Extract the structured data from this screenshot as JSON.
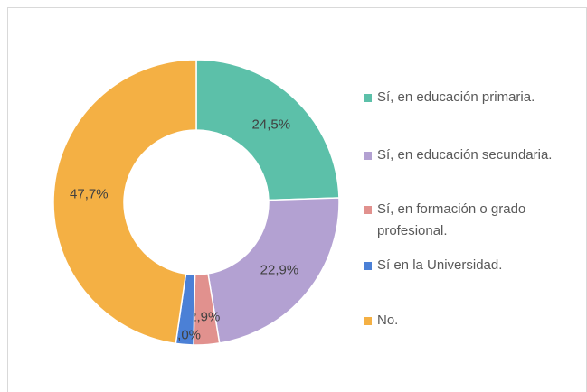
{
  "chart_data": {
    "type": "donut",
    "categories": [
      "Sí, en educación primaria.",
      "Sí, en educación secundaria.",
      "Sí, en formación o grado profesional.",
      "Sí en la Universidad.",
      "No."
    ],
    "values": [
      24.5,
      22.9,
      2.9,
      2.0,
      47.7
    ],
    "value_labels": [
      "24,5%",
      "22,9%",
      "2,9%",
      "2,0%",
      "47,7%"
    ],
    "colors": [
      "#5cc0a9",
      "#b3a1d2",
      "#e1918e",
      "#4b80d6",
      "#f4b044"
    ]
  }
}
